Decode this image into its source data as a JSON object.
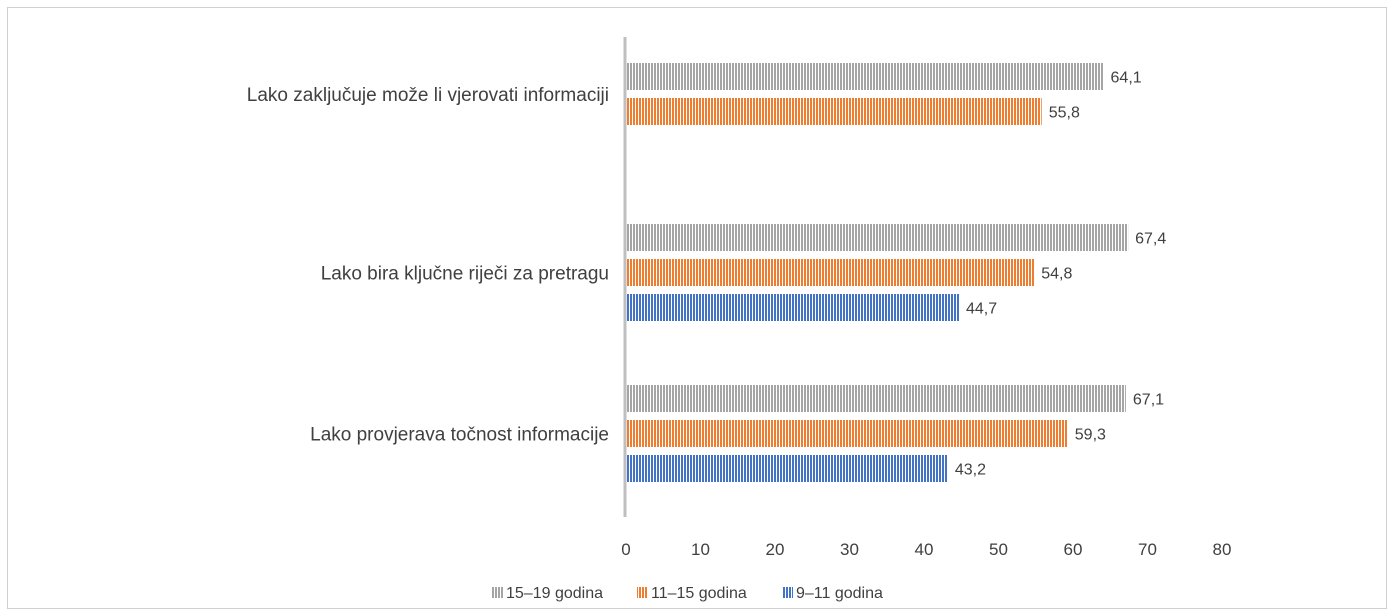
{
  "chart_data": {
    "type": "bar",
    "orientation": "horizontal",
    "title": "",
    "xlabel": "",
    "ylabel": "",
    "xlim": [
      0,
      80
    ],
    "x_ticks": [
      0,
      10,
      20,
      30,
      40,
      50,
      60,
      70,
      80
    ],
    "grid": false,
    "legend_position": "bottom",
    "categories": [
      "Lako zaključuje može li vjerovati informaciji",
      "Lako bira ključne riječi za pretragu",
      "Lako provjerava točnost informacije"
    ],
    "series": [
      {
        "name": "15–19 godina",
        "color": "#a5a5a5",
        "values": [
          64.1,
          67.4,
          67.1
        ]
      },
      {
        "name": "11–15 godina",
        "color": "#ed7d31",
        "values": [
          55.8,
          54.8,
          59.3
        ]
      },
      {
        "name": "9–11 godina",
        "color": "#4472c4",
        "values": [
          null,
          44.7,
          43.2
        ]
      }
    ],
    "value_labels": [
      [
        "64,1",
        "67,4",
        "67,1"
      ],
      [
        "55,8",
        "54,8",
        "59,3"
      ],
      [
        null,
        "44,7",
        "43,2"
      ]
    ]
  }
}
